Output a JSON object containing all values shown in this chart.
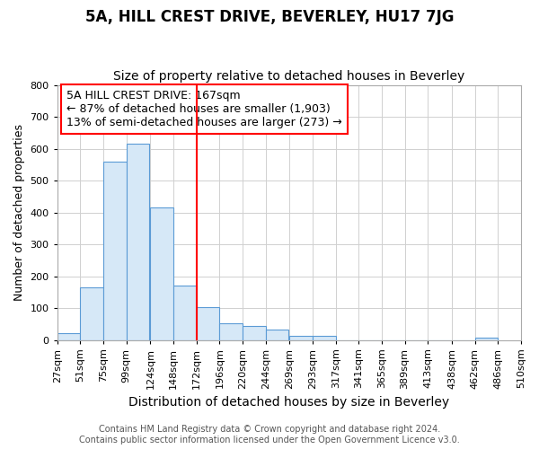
{
  "title": "5A, HILL CREST DRIVE, BEVERLEY, HU17 7JG",
  "subtitle": "Size of property relative to detached houses in Beverley",
  "xlabel": "Distribution of detached houses by size in Beverley",
  "ylabel": "Number of detached properties",
  "bar_values": [
    20,
    165,
    560,
    615,
    415,
    170,
    103,
    53,
    43,
    32,
    14,
    12,
    0,
    0,
    0,
    0,
    0,
    0,
    8
  ],
  "bar_edges": [
    27,
    51,
    75,
    99,
    124,
    148,
    172,
    196,
    220,
    244,
    269,
    293,
    317,
    341,
    365,
    389,
    413,
    438,
    462,
    486
  ],
  "x_tick_labels": [
    "27sqm",
    "51sqm",
    "75sqm",
    "99sqm",
    "124sqm",
    "148sqm",
    "172sqm",
    "196sqm",
    "220sqm",
    "244sqm",
    "269sqm",
    "293sqm",
    "317sqm",
    "341sqm",
    "365sqm",
    "389sqm",
    "413sqm",
    "438sqm",
    "462sqm",
    "486sqm",
    "510sqm"
  ],
  "x_tick_positions": [
    27,
    51,
    75,
    99,
    124,
    148,
    172,
    196,
    220,
    244,
    269,
    293,
    317,
    341,
    365,
    389,
    413,
    438,
    462,
    486,
    510
  ],
  "ylim": [
    0,
    800
  ],
  "xlim_left": 27,
  "xlim_right": 510,
  "property_line_x": 172,
  "property_line_color": "#ff0000",
  "bar_facecolor": "#d6e8f7",
  "bar_edgecolor": "#5b9bd5",
  "grid_color": "#d0d0d0",
  "figure_background": "#ffffff",
  "axes_background": "#ffffff",
  "annotation_text": "5A HILL CREST DRIVE: 167sqm\n← 87% of detached houses are smaller (1,903)\n13% of semi-detached houses are larger (273) →",
  "annotation_box_color": "#ff0000",
  "footer_line1": "Contains HM Land Registry data © Crown copyright and database right 2024.",
  "footer_line2": "Contains public sector information licensed under the Open Government Licence v3.0.",
  "title_fontsize": 12,
  "subtitle_fontsize": 10,
  "xlabel_fontsize": 10,
  "ylabel_fontsize": 9,
  "tick_fontsize": 8,
  "annotation_fontsize": 9,
  "footer_fontsize": 7
}
